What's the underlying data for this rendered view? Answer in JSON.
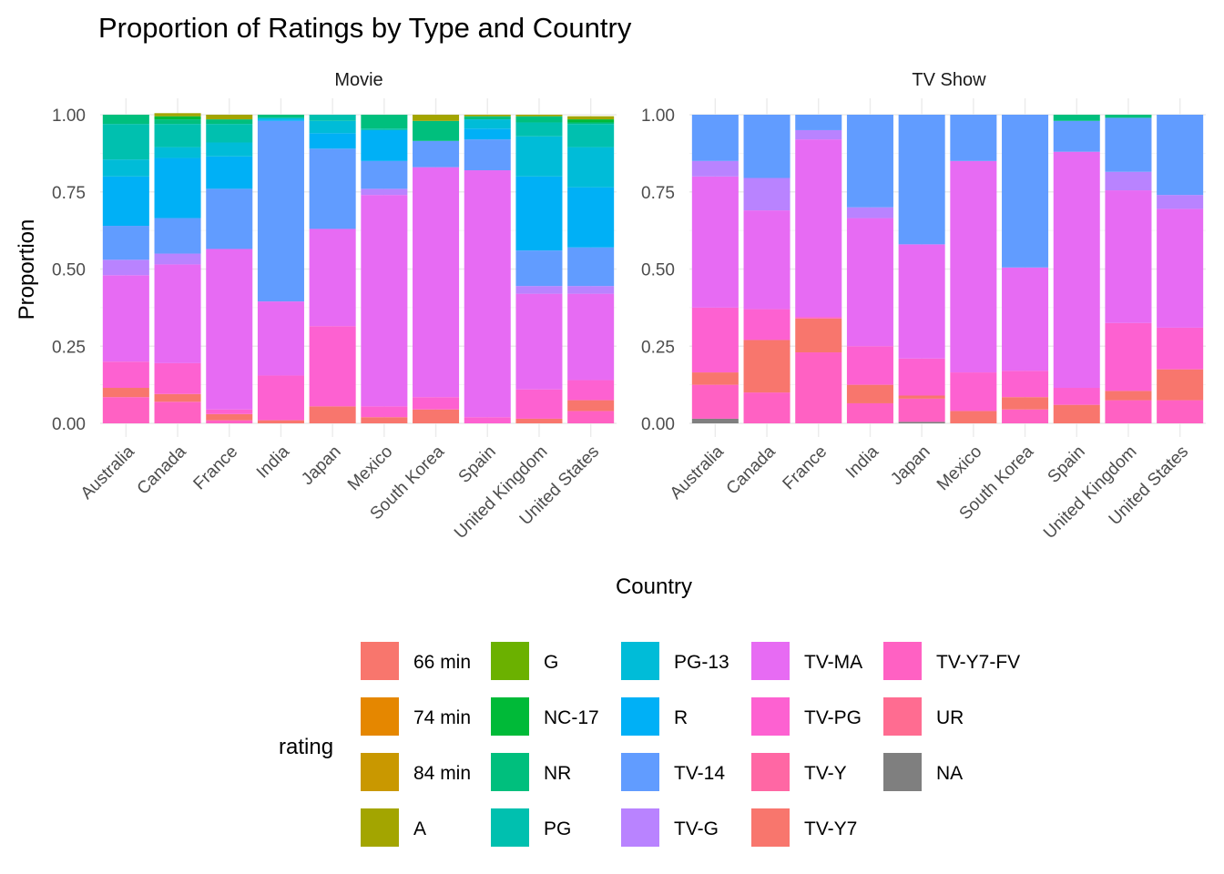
{
  "chart_data": {
    "type": "bar",
    "stacked": true,
    "title": "Proportion of Ratings by Type and Country",
    "xlabel": "Country",
    "ylabel": "Proportion",
    "ylim": [
      0,
      1
    ],
    "yticks": [
      "0.00",
      "0.25",
      "0.50",
      "0.75",
      "1.00"
    ],
    "grid": true,
    "legend": {
      "title": "rating",
      "position": "bottom"
    },
    "categories": [
      "Australia",
      "Canada",
      "France",
      "India",
      "Japan",
      "Mexico",
      "South Korea",
      "Spain",
      "United Kingdom",
      "United States"
    ],
    "ratings": [
      {
        "name": "66 min",
        "color": "#F8766D"
      },
      {
        "name": "74 min",
        "color": "#E58700"
      },
      {
        "name": "84 min",
        "color": "#C99800"
      },
      {
        "name": "A",
        "color": "#A3A500"
      },
      {
        "name": "G",
        "color": "#6BB100"
      },
      {
        "name": "NC-17",
        "color": "#00BA38"
      },
      {
        "name": "NR",
        "color": "#00BF7D"
      },
      {
        "name": "PG",
        "color": "#00C0AF"
      },
      {
        "name": "PG-13",
        "color": "#00BCD8"
      },
      {
        "name": "R",
        "color": "#00B0F6"
      },
      {
        "name": "TV-14",
        "color": "#619CFF"
      },
      {
        "name": "TV-G",
        "color": "#B983FF"
      },
      {
        "name": "TV-MA",
        "color": "#E76BF3"
      },
      {
        "name": "TV-PG",
        "color": "#FD61D1"
      },
      {
        "name": "TV-Y",
        "color": "#FF67A4"
      },
      {
        "name": "TV-Y7",
        "color": "#F8766D"
      },
      {
        "name": "TV-Y7-FV",
        "color": "#FF61C3"
      },
      {
        "name": "UR",
        "color": "#FF6C91"
      },
      {
        "name": "NA",
        "color": "#7F7F7F"
      }
    ],
    "panels": [
      {
        "name": "Movie",
        "bars": [
          {
            "category": "Australia",
            "segments": [
              [
                "TV-Y7",
                0.03
              ],
              [
                "TV-Y7-FV",
                0.085
              ],
              [
                "TV-PG",
                0.085
              ],
              [
                "TV-MA",
                0.28
              ],
              [
                "TV-G",
                0.05
              ],
              [
                "TV-14",
                0.11
              ],
              [
                "R",
                0.16
              ],
              [
                "PG-13",
                0.055
              ],
              [
                "PG",
                0.115
              ],
              [
                "NR",
                0.03
              ]
            ]
          },
          {
            "category": "Canada",
            "segments": [
              [
                "TV-Y7",
                0.025
              ],
              [
                "TV-Y7-FV",
                0.07
              ],
              [
                "TV-PG",
                0.1
              ],
              [
                "TV-MA",
                0.32
              ],
              [
                "TV-G",
                0.035
              ],
              [
                "TV-14",
                0.115
              ],
              [
                "R",
                0.195
              ],
              [
                "PG-13",
                0.035
              ],
              [
                "PG",
                0.075
              ],
              [
                "NR",
                0.015
              ],
              [
                "NC-17",
                0.01
              ],
              [
                "A",
                0.01
              ]
            ]
          },
          {
            "category": "France",
            "segments": [
              [
                "TV-Y7",
                0.02
              ],
              [
                "TV-Y7-FV",
                0.01
              ],
              [
                "TV-PG",
                0.015
              ],
              [
                "TV-MA",
                0.52
              ],
              [
                "TV-14",
                0.195
              ],
              [
                "R",
                0.105
              ],
              [
                "PG-13",
                0.045
              ],
              [
                "PG",
                0.06
              ],
              [
                "NR",
                0.015
              ],
              [
                "A",
                0.015
              ]
            ]
          },
          {
            "category": "India",
            "segments": [
              [
                "TV-Y7",
                0.01
              ],
              [
                "TV-PG",
                0.145
              ],
              [
                "TV-MA",
                0.24
              ],
              [
                "TV-14",
                0.585
              ],
              [
                "R",
                0.005
              ],
              [
                "PG-13",
                0.005
              ],
              [
                "NR",
                0.01
              ]
            ]
          },
          {
            "category": "Japan",
            "segments": [
              [
                "TV-Y7",
                0.055
              ],
              [
                "TV-PG",
                0.26
              ],
              [
                "TV-MA",
                0.315
              ],
              [
                "TV-14",
                0.26
              ],
              [
                "R",
                0.05
              ],
              [
                "PG-13",
                0.04
              ],
              [
                "PG",
                0.02
              ]
            ]
          },
          {
            "category": "Mexico",
            "segments": [
              [
                "TV-Y7",
                0.02
              ],
              [
                "TV-PG",
                0.035
              ],
              [
                "TV-MA",
                0.685
              ],
              [
                "TV-G",
                0.02
              ],
              [
                "TV-14",
                0.09
              ],
              [
                "R",
                0.1
              ],
              [
                "PG",
                0.005
              ],
              [
                "NR",
                0.045
              ]
            ]
          },
          {
            "category": "South Korea",
            "segments": [
              [
                "TV-Y7",
                0.045
              ],
              [
                "TV-PG",
                0.04
              ],
              [
                "TV-MA",
                0.745
              ],
              [
                "TV-14",
                0.085
              ],
              [
                "NR",
                0.065
              ],
              [
                "A",
                0.02
              ]
            ]
          },
          {
            "category": "Spain",
            "segments": [
              [
                "TV-PG",
                0.02
              ],
              [
                "TV-MA",
                0.8
              ],
              [
                "TV-14",
                0.1
              ],
              [
                "R",
                0.035
              ],
              [
                "PG-13",
                0.03
              ],
              [
                "NR",
                0.01
              ],
              [
                "A",
                0.005
              ]
            ]
          },
          {
            "category": "United Kingdom",
            "segments": [
              [
                "TV-Y7",
                0.015
              ],
              [
                "TV-PG",
                0.095
              ],
              [
                "TV-MA",
                0.31
              ],
              [
                "TV-G",
                0.025
              ],
              [
                "TV-14",
                0.115
              ],
              [
                "R",
                0.24
              ],
              [
                "PG-13",
                0.13
              ],
              [
                "PG",
                0.045
              ],
              [
                "NR",
                0.02
              ],
              [
                "A",
                0.005
              ]
            ]
          },
          {
            "category": "United States",
            "segments": [
              [
                "TV-Y7",
                0.035
              ],
              [
                "TV-Y7-FV",
                0.04
              ],
              [
                "TV-PG",
                0.065
              ],
              [
                "TV-MA",
                0.28
              ],
              [
                "TV-G",
                0.025
              ],
              [
                "TV-14",
                0.125
              ],
              [
                "R",
                0.195
              ],
              [
                "PG-13",
                0.13
              ],
              [
                "PG",
                0.075
              ],
              [
                "NR",
                0.005
              ],
              [
                "NC-17",
                0.01
              ],
              [
                "A",
                0.01
              ]
            ]
          }
        ]
      },
      {
        "name": "TV Show",
        "bars": [
          {
            "category": "Australia",
            "segments": [
              [
                "NA",
                0.015
              ],
              [
                "TV-Y7",
                0.04
              ],
              [
                "TV-Y7-FV",
                0.11
              ],
              [
                "TV-PG",
                0.21
              ],
              [
                "TV-MA",
                0.425
              ],
              [
                "TV-G",
                0.05
              ],
              [
                "TV-14",
                0.15
              ]
            ]
          },
          {
            "category": "Canada",
            "segments": [
              [
                "TV-Y7",
                0.17
              ],
              [
                "TV-Y7-FV",
                0.1
              ],
              [
                "TV-PG",
                0.1
              ],
              [
                "TV-MA",
                0.32
              ],
              [
                "TV-G",
                0.105
              ],
              [
                "TV-14",
                0.205
              ]
            ]
          },
          {
            "category": "France",
            "segments": [
              [
                "TV-Y7",
                0.11
              ],
              [
                "TV-Y7-FV",
                0.23
              ],
              [
                "TV-PG",
                0.005
              ],
              [
                "TV-MA",
                0.575
              ],
              [
                "TV-G",
                0.03
              ],
              [
                "TV-14",
                0.05
              ]
            ]
          },
          {
            "category": "India",
            "segments": [
              [
                "TV-Y7",
                0.06
              ],
              [
                "TV-Y7-FV",
                0.065
              ],
              [
                "TV-PG",
                0.125
              ],
              [
                "TV-MA",
                0.415
              ],
              [
                "TV-G",
                0.035
              ],
              [
                "TV-14",
                0.3
              ]
            ]
          },
          {
            "category": "Japan",
            "segments": [
              [
                "NA",
                0.005
              ],
              [
                "TV-Y7",
                0.01
              ],
              [
                "TV-Y7-FV",
                0.075
              ],
              [
                "TV-PG",
                0.12
              ],
              [
                "TV-MA",
                0.37
              ],
              [
                "TV-14",
                0.42
              ]
            ]
          },
          {
            "category": "Mexico",
            "segments": [
              [
                "TV-Y7",
                0.04
              ],
              [
                "TV-PG",
                0.125
              ],
              [
                "TV-MA",
                0.685
              ],
              [
                "TV-14",
                0.15
              ]
            ]
          },
          {
            "category": "South Korea",
            "segments": [
              [
                "TV-Y7",
                0.04
              ],
              [
                "TV-Y7-FV",
                0.045
              ],
              [
                "TV-PG",
                0.085
              ],
              [
                "TV-MA",
                0.335
              ],
              [
                "TV-14",
                0.495
              ]
            ]
          },
          {
            "category": "Spain",
            "segments": [
              [
                "TV-Y7",
                0.06
              ],
              [
                "TV-PG",
                0.055
              ],
              [
                "TV-MA",
                0.765
              ],
              [
                "TV-14",
                0.1
              ],
              [
                "NR",
                0.02
              ]
            ]
          },
          {
            "category": "United Kingdom",
            "segments": [
              [
                "TV-Y7",
                0.03
              ],
              [
                "TV-Y7-FV",
                0.075
              ],
              [
                "TV-PG",
                0.22
              ],
              [
                "TV-MA",
                0.43
              ],
              [
                "TV-G",
                0.06
              ],
              [
                "TV-14",
                0.175
              ],
              [
                "NR",
                0.01
              ]
            ]
          },
          {
            "category": "United States",
            "segments": [
              [
                "TV-Y7",
                0.1
              ],
              [
                "TV-Y7-FV",
                0.075
              ],
              [
                "TV-PG",
                0.135
              ],
              [
                "TV-MA",
                0.385
              ],
              [
                "TV-G",
                0.045
              ],
              [
                "TV-14",
                0.26
              ]
            ]
          }
        ]
      }
    ]
  }
}
